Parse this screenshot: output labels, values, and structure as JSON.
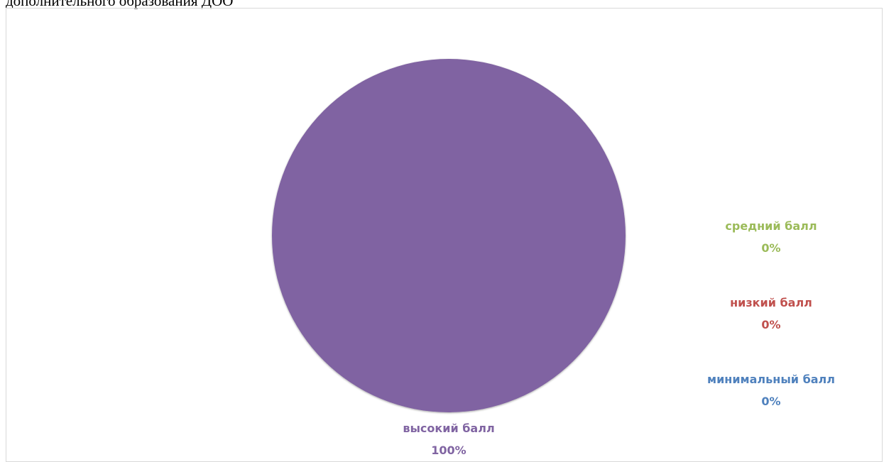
{
  "caption": "дополнительного образования ДОО",
  "chart_data": {
    "type": "pie",
    "title": "",
    "slices": [
      {
        "name": "высокий балл",
        "value": 100,
        "label_pct": "100%",
        "color": "#8064a2"
      },
      {
        "name": "средний балл",
        "value": 0,
        "label_pct": "0%",
        "color": "#9bbb59"
      },
      {
        "name": "низкий балл",
        "value": 0,
        "label_pct": "0%",
        "color": "#c0504d"
      },
      {
        "name": "минимальный балл",
        "value": 0,
        "label_pct": "0%",
        "color": "#4f81bd"
      }
    ],
    "legend": "none",
    "data_labels": "category-and-percent"
  }
}
